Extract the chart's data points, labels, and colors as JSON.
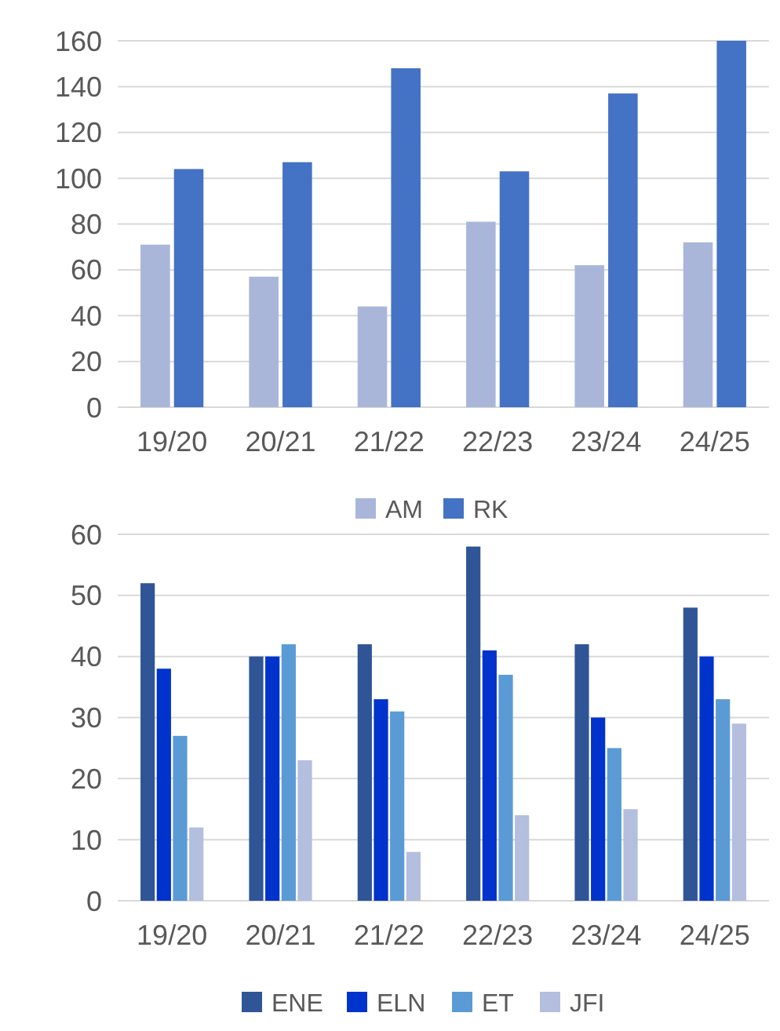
{
  "chart_data": [
    {
      "type": "bar",
      "categories": [
        "19/20",
        "20/21",
        "21/22",
        "22/23",
        "23/24",
        "24/25"
      ],
      "series": [
        {
          "name": "AM",
          "color": "#a9b6da",
          "values": [
            71,
            57,
            44,
            81,
            62,
            72
          ]
        },
        {
          "name": "RK",
          "color": "#4472c4",
          "values": [
            104,
            107,
            148,
            103,
            137,
            160
          ]
        }
      ],
      "ylim": [
        0,
        160
      ],
      "yticks": [
        0,
        20,
        40,
        60,
        80,
        100,
        120,
        140,
        160
      ],
      "grid": "y",
      "legend": "bottom"
    },
    {
      "type": "bar",
      "categories": [
        "19/20",
        "20/21",
        "21/22",
        "22/23",
        "23/24",
        "24/25"
      ],
      "series": [
        {
          "name": "ENE",
          "color": "#2f5597",
          "values": [
            52,
            40,
            42,
            58,
            42,
            48
          ]
        },
        {
          "name": "ELN",
          "color": "#0033cc",
          "values": [
            38,
            40,
            33,
            41,
            30,
            40
          ]
        },
        {
          "name": "ET",
          "color": "#5b9bd5",
          "values": [
            27,
            42,
            31,
            37,
            25,
            33
          ]
        },
        {
          "name": "JFI",
          "color": "#b4bede",
          "values": [
            12,
            23,
            8,
            14,
            15,
            29
          ]
        }
      ],
      "ylim": [
        0,
        60
      ],
      "yticks": [
        0,
        10,
        20,
        30,
        40,
        50,
        60
      ],
      "grid": "y",
      "legend": "bottom"
    }
  ]
}
